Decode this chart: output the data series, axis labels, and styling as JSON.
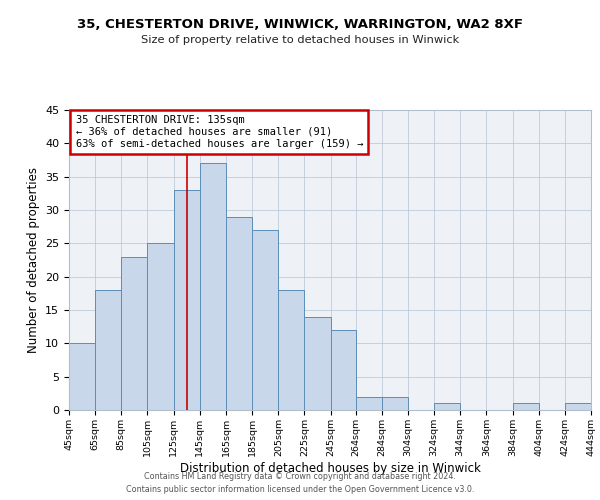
{
  "title": "35, CHESTERTON DRIVE, WINWICK, WARRINGTON, WA2 8XF",
  "subtitle": "Size of property relative to detached houses in Winwick",
  "xlabel": "Distribution of detached houses by size in Winwick",
  "ylabel": "Number of detached properties",
  "bar_color": "#c8d8ea",
  "bar_edge_color": "#5b8db8",
  "background_color": "#eef2f7",
  "bin_edges": [
    45,
    65,
    85,
    105,
    125,
    145,
    165,
    185,
    205,
    225,
    245,
    264,
    284,
    304,
    324,
    344,
    364,
    384,
    404,
    424,
    444
  ],
  "counts": [
    10,
    18,
    23,
    25,
    33,
    37,
    29,
    27,
    18,
    14,
    12,
    2,
    2,
    0,
    1,
    0,
    0,
    1,
    0,
    1
  ],
  "tick_labels": [
    "45sqm",
    "65sqm",
    "85sqm",
    "105sqm",
    "125sqm",
    "145sqm",
    "165sqm",
    "185sqm",
    "205sqm",
    "225sqm",
    "245sqm",
    "264sqm",
    "284sqm",
    "304sqm",
    "324sqm",
    "344sqm",
    "364sqm",
    "384sqm",
    "404sqm",
    "424sqm",
    "444sqm"
  ],
  "ylim": [
    0,
    45
  ],
  "yticks": [
    0,
    5,
    10,
    15,
    20,
    25,
    30,
    35,
    40,
    45
  ],
  "property_line_x": 135,
  "annotation_title": "35 CHESTERTON DRIVE: 135sqm",
  "annotation_line1": "← 36% of detached houses are smaller (91)",
  "annotation_line2": "63% of semi-detached houses are larger (159) →",
  "annotation_box_color": "#ffffff",
  "annotation_box_edge_color": "#cc0000",
  "footer1": "Contains HM Land Registry data © Crown copyright and database right 2024.",
  "footer2": "Contains public sector information licensed under the Open Government Licence v3.0."
}
